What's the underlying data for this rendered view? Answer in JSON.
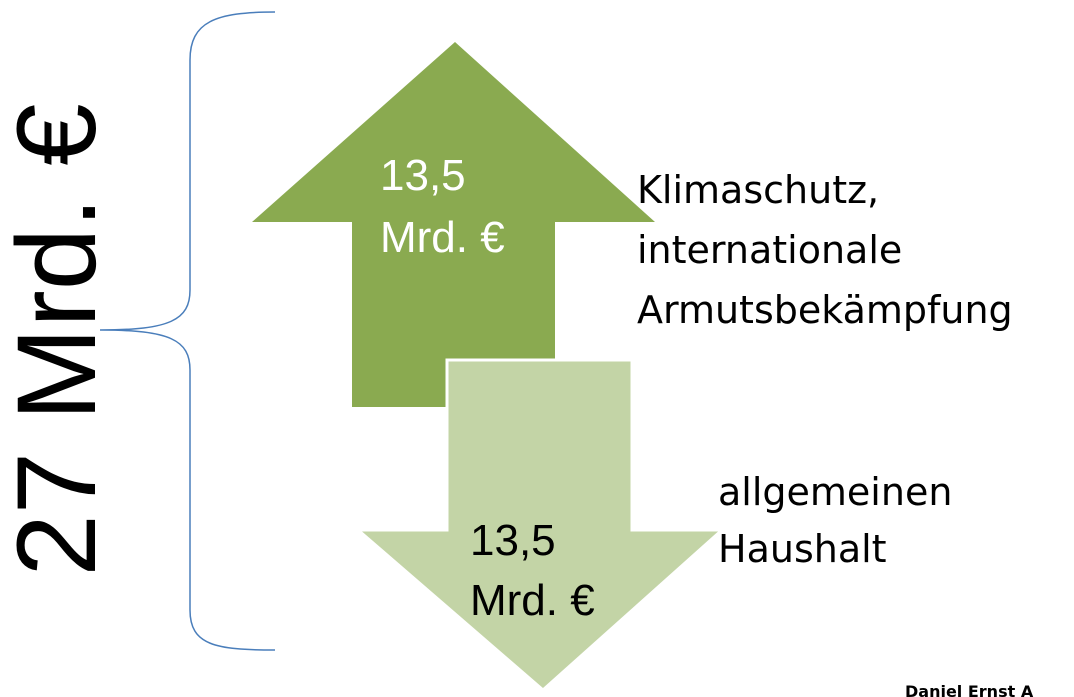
{
  "total_label": "27 Mrd. €",
  "up_arrow": {
    "amount_lines": [
      "13,5",
      "Mrd. €"
    ],
    "description_lines": [
      "Klimaschutz,",
      "internationale",
      "Armutsbekämpfung"
    ]
  },
  "down_arrow": {
    "amount_lines": [
      "13,5",
      "Mrd. €"
    ],
    "description_lines": [
      "allgemeinen",
      "Haushalt"
    ]
  },
  "footer": "Daniel Ernst A"
}
